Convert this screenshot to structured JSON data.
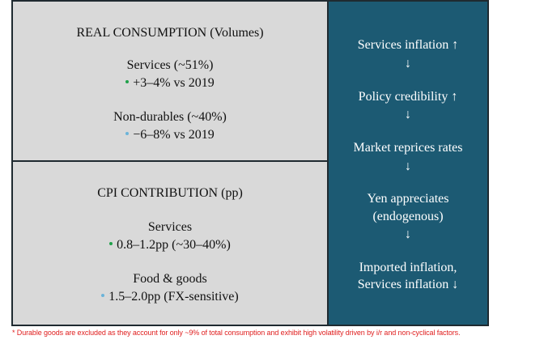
{
  "left_top": {
    "title": "REAL CONSUMPTION (Volumes)",
    "items": [
      {
        "heading": "Services (~51%)",
        "detail": "+3–4% vs 2019",
        "bullet_color": "#1fa14a"
      },
      {
        "heading": "Non-durables (~40%)",
        "detail": "−6–8% vs 2019",
        "bullet_color": "#6bb3d9"
      }
    ]
  },
  "left_bottom": {
    "title": "CPI CONTRIBUTION (pp)",
    "items": [
      {
        "heading": "Services",
        "detail": "0.8–1.2pp (~30–40%)",
        "bullet_color": "#1fa14a"
      },
      {
        "heading": "Food & goods",
        "detail": "1.5–2.0pp (FX-sensitive)",
        "bullet_color": "#6bb3d9"
      }
    ]
  },
  "right_flow": {
    "steps": [
      {
        "line1": "Services inflation ↑"
      },
      {
        "line1": "Policy credibility ↑"
      },
      {
        "line1": "Market reprices rates"
      },
      {
        "line1": "Yen appreciates",
        "line2": "(endogenous)"
      },
      {
        "line1": "Imported inflation,",
        "line2": "Services inflation ↓"
      }
    ],
    "arrow": "↓"
  },
  "colors": {
    "panel_gray": "#d9d9d9",
    "panel_blue": "#1c5a73",
    "footnote_red": "#e02020"
  },
  "footnote": "* Durable goods are excluded as they account for only ~9% of total consumption and exhibit high volatility driven by i/r and non-cyclical factors."
}
